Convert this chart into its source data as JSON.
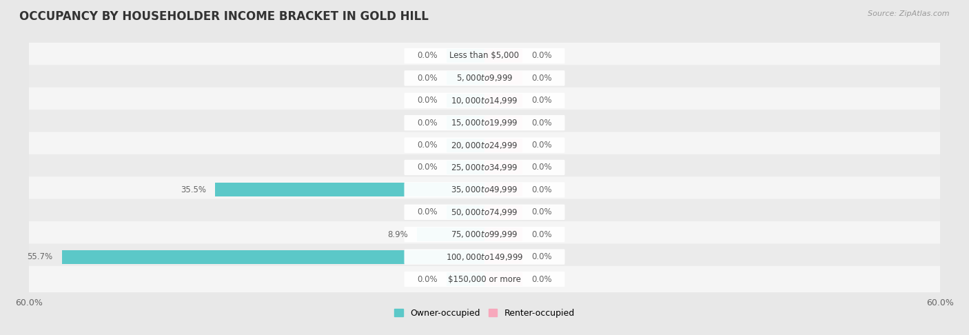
{
  "title": "OCCUPANCY BY HOUSEHOLDER INCOME BRACKET IN GOLD HILL",
  "source": "Source: ZipAtlas.com",
  "categories": [
    "Less than $5,000",
    "$5,000 to $9,999",
    "$10,000 to $14,999",
    "$15,000 to $19,999",
    "$20,000 to $24,999",
    "$25,000 to $34,999",
    "$35,000 to $49,999",
    "$50,000 to $74,999",
    "$75,000 to $99,999",
    "$100,000 to $149,999",
    "$150,000 or more"
  ],
  "owner_values": [
    0.0,
    0.0,
    0.0,
    0.0,
    0.0,
    0.0,
    35.5,
    0.0,
    8.9,
    55.7,
    0.0
  ],
  "renter_values": [
    0.0,
    0.0,
    0.0,
    0.0,
    0.0,
    0.0,
    0.0,
    0.0,
    0.0,
    0.0,
    0.0
  ],
  "owner_color": "#5bc8c8",
  "renter_color": "#f7a8bc",
  "background_color": "#e8e8e8",
  "row_light_color": "#f5f5f5",
  "row_dark_color": "#ebebeb",
  "xlim": 60.0,
  "bar_height": 0.62,
  "title_fontsize": 12,
  "axis_label_fontsize": 9,
  "category_fontsize": 8.5,
  "value_fontsize": 8.5,
  "legend_fontsize": 9,
  "stub_size": 5.0
}
